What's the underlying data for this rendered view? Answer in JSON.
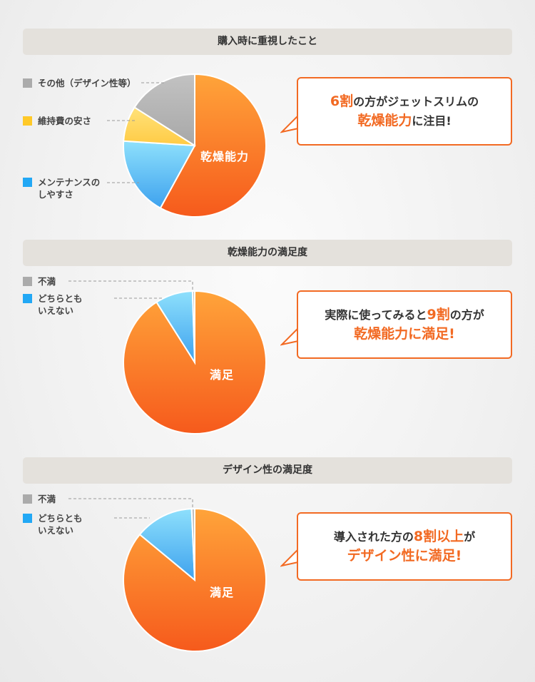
{
  "colors": {
    "orange": "#f26a23",
    "blue": "#4aaef0",
    "yellow": "#ffd24a",
    "gray": "#ababab",
    "accent": "#f26a23"
  },
  "chart_data": [
    {
      "type": "pie",
      "title": "購入時に重視したこと",
      "slices": [
        {
          "label": "乾燥能力",
          "value": 58,
          "color": "orange"
        },
        {
          "label": "メンテナンスのしやすさ",
          "value": 18,
          "color": "blue"
        },
        {
          "label": "維持費の安さ",
          "value": 8,
          "color": "yellow"
        },
        {
          "label": "その他（デザイン性等）",
          "value": 16,
          "color": "gray"
        }
      ]
    },
    {
      "type": "pie",
      "title": "乾燥能力の満足度",
      "slices": [
        {
          "label": "満足",
          "value": 91,
          "color": "orange"
        },
        {
          "label": "どちらともいえない",
          "value": 8.5,
          "color": "blue"
        },
        {
          "label": "不満",
          "value": 0.5,
          "color": "gray"
        }
      ]
    },
    {
      "type": "pie",
      "title": "デザイン性の満足度",
      "slices": [
        {
          "label": "満足",
          "value": 86,
          "color": "orange"
        },
        {
          "label": "どちらともいえない",
          "value": 13.3,
          "color": "blue"
        },
        {
          "label": "不満",
          "value": 0.7,
          "color": "gray"
        }
      ]
    }
  ],
  "sections": [
    {
      "title": "購入時に重視したこと",
      "inner": "乾燥能力",
      "legend": [
        "その他（デザイン性等）",
        "維持費の安さ",
        "メンテナンスの",
        "しやすさ"
      ],
      "callout": {
        "a": "6割",
        "b": "の方がジェットスリムの",
        "c": "乾燥能力",
        "d": "に注目!"
      }
    },
    {
      "title": "乾燥能力の満足度",
      "inner": "満足",
      "legend": [
        "不満",
        "どちらとも",
        "いえない"
      ],
      "callout": {
        "a": "実際に使ってみると",
        "b": "9割",
        "c": "の方が",
        "d": "乾燥能力に満足!"
      }
    },
    {
      "title": "デザイン性の満足度",
      "inner": "満足",
      "legend": [
        "不満",
        "どちらとも",
        "いえない"
      ],
      "callout": {
        "a": "導入された方の",
        "b": "8割以上",
        "c": "が",
        "d": "デザイン性に満足!"
      }
    }
  ]
}
